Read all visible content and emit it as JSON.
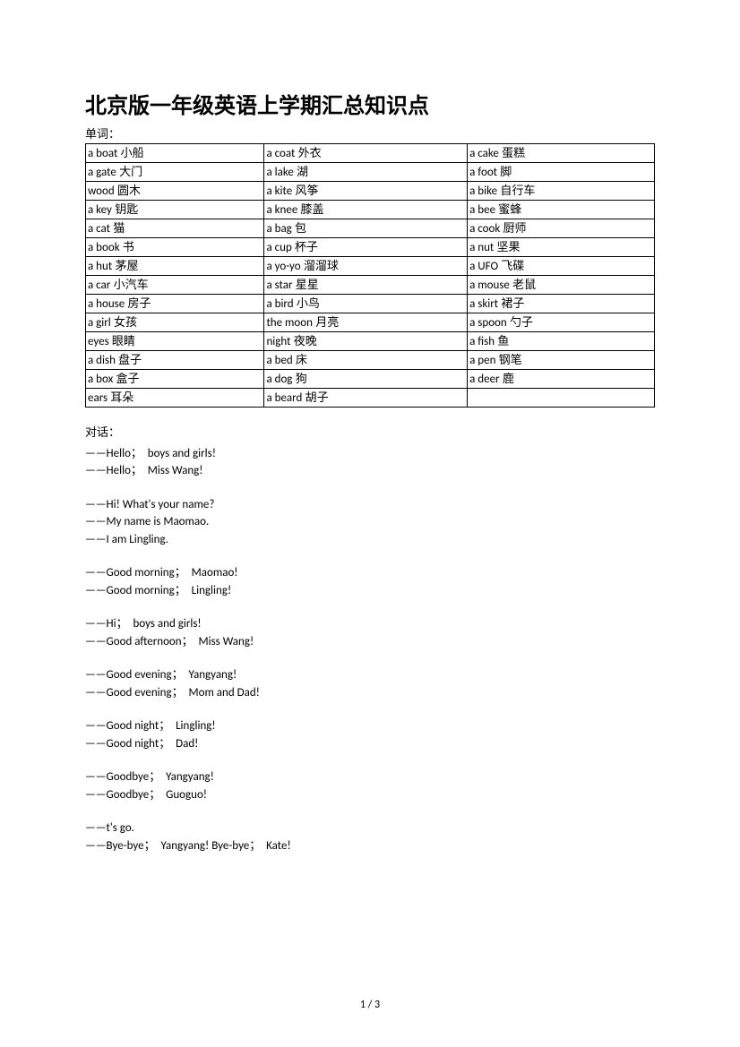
{
  "title": "北京版一年级英语上学期汇总知识点",
  "vocab_label": "单词：",
  "table": {
    "rows": [
      [
        {
          "eng": "a boat",
          "chn": " 小船"
        },
        {
          "eng": "a coat",
          "chn": " 外衣"
        },
        {
          "eng": "a cake",
          "chn": " 蛋糕"
        }
      ],
      [
        {
          "eng": "a gate",
          "chn": " 大门"
        },
        {
          "eng": "a lake",
          "chn": " 湖"
        },
        {
          "eng": "a foot",
          "chn": " 脚"
        }
      ],
      [
        {
          "eng": "wood",
          "chn": " 圆木"
        },
        {
          "eng": "a kite",
          "chn": " 风筝"
        },
        {
          "eng": "a bike",
          "chn": " 自行车"
        }
      ],
      [
        {
          "eng": "a key",
          "chn": " 钥匙"
        },
        {
          "eng": "a knee",
          "chn": " 膝盖"
        },
        {
          "eng": "a bee",
          "chn": " 蜜蜂"
        }
      ],
      [
        {
          "eng": "a cat",
          "chn": " 猫"
        },
        {
          "eng": "a bag",
          "chn": " 包"
        },
        {
          "eng": "a cook",
          "chn": " 厨师"
        }
      ],
      [
        {
          "eng": "a book",
          "chn": " 书"
        },
        {
          "eng": "a cup",
          "chn": " 杯子"
        },
        {
          "eng": "a nut",
          "chn": " 坚果"
        }
      ],
      [
        {
          "eng": "a hut",
          "chn": " 茅屋"
        },
        {
          "eng": "a yo-yo",
          "chn": " 溜溜球"
        },
        {
          "eng": "a UFO",
          "chn": " 飞碟"
        }
      ],
      [
        {
          "eng": "a car",
          "chn": " 小汽车"
        },
        {
          "eng": "a star",
          "chn": " 星星"
        },
        {
          "eng": "a mouse",
          "chn": " 老鼠"
        }
      ],
      [
        {
          "eng": "a house",
          "chn": " 房子"
        },
        {
          "eng": "a bird",
          "chn": " 小鸟"
        },
        {
          "eng": "a skirt",
          "chn": " 裙子"
        }
      ],
      [
        {
          "eng": "a girl",
          "chn": " 女孩"
        },
        {
          "eng": "the moon",
          "chn": " 月亮"
        },
        {
          "eng": "a spoon",
          "chn": " 勺子"
        }
      ],
      [
        {
          "eng": "eyes",
          "chn": " 眼睛"
        },
        {
          "eng": "night",
          "chn": " 夜晚"
        },
        {
          "eng": "a fish",
          "chn": " 鱼"
        }
      ],
      [
        {
          "eng": "a dish",
          "chn": " 盘子"
        },
        {
          "eng": "a bed",
          "chn": " 床"
        },
        {
          "eng": "a pen",
          "chn": " 钢笔"
        }
      ],
      [
        {
          "eng": "a box",
          "chn": " 盒子"
        },
        {
          "eng": "a dog",
          "chn": " 狗"
        },
        {
          "eng": "a deer",
          "chn": " 鹿"
        }
      ],
      [
        {
          "eng": "ears",
          "chn": " 耳朵"
        },
        {
          "eng": "a beard",
          "chn": " 胡子"
        },
        {
          "eng": "",
          "chn": ""
        }
      ]
    ]
  },
  "dialogue_label": "对话：",
  "dialogues": [
    [
      "——Hello；  boys and girls!",
      "——Hello；  Miss Wang!"
    ],
    [
      "——Hi! What's your name?",
      "——My name is Maomao.",
      "——I am Lingling."
    ],
    [
      "——Good morning；  Maomao!",
      "——Good morning；  Lingling!"
    ],
    [
      "——Hi；  boys and girls!",
      "——Good afternoon；  Miss Wang!"
    ],
    [
      "——Good evening；  Yangyang!",
      "——Good evening；  Mom and Dad!"
    ],
    [
      "——Good night；  Lingling!",
      "——Good night；  Dad!"
    ],
    [
      "——Goodbye；  Yangyang!",
      "——Goodbye；  Guoguo!"
    ],
    [
      "——t's go.",
      "——Bye-bye；  Yangyang! Bye-bye；  Kate!"
    ]
  ],
  "page_number": "1  /  3"
}
